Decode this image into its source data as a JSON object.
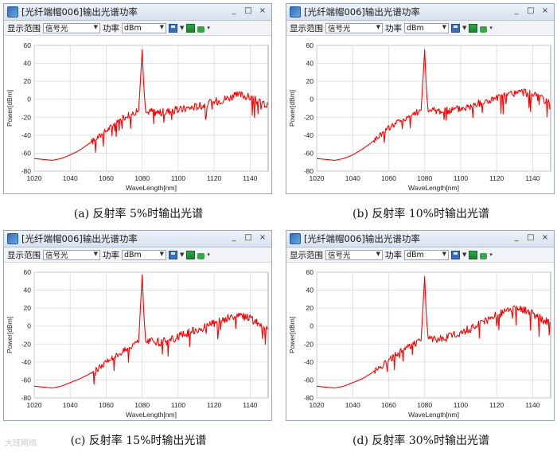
{
  "window_title": "[光纤端帽006]输出光谱功率",
  "toolbar": {
    "range_label": "显示范围",
    "range_value": "信号光",
    "power_label": "功率",
    "power_unit": "dBm"
  },
  "window_buttons": {
    "minimize": "_",
    "maximize": "□",
    "close": "×"
  },
  "watermark": "大班网络",
  "colors": {
    "line": "#ff0000",
    "grid": "#d9d9d9",
    "window_border": "#9aa7b8"
  },
  "chart_data": [
    {
      "type": "line",
      "caption": "(a)  反射率 5%时输出光谱",
      "xlabel": "WaveLength[nm]",
      "ylabel": "Power[dBm]",
      "xlim": [
        1020,
        1150
      ],
      "ylim": [
        -80,
        60
      ],
      "xticks": [
        1020,
        1040,
        1060,
        1080,
        1100,
        1120,
        1140
      ],
      "yticks": [
        -80,
        -60,
        -40,
        -20,
        0,
        20,
        40,
        60
      ],
      "grid": true,
      "series": [
        {
          "x": [
            1020,
            1025,
            1030,
            1035,
            1040,
            1045,
            1050,
            1055,
            1060,
            1065,
            1070,
            1075,
            1078,
            1079,
            1080,
            1081,
            1082,
            1085,
            1090,
            1095,
            1100,
            1105,
            1110,
            1115,
            1120,
            1125,
            1130,
            1135,
            1140,
            1145,
            1150
          ],
          "y": [
            -66,
            -67,
            -68,
            -66,
            -62,
            -57,
            -50,
            -43,
            -35,
            -27,
            -20,
            -15,
            -13,
            20,
            55,
            10,
            -15,
            -13,
            -15,
            -13,
            -12,
            -10,
            -8,
            -6,
            -3,
            0,
            3,
            5,
            2,
            -3,
            -7
          ]
        }
      ]
    },
    {
      "type": "line",
      "caption": "(b)  反射率 10%时输出光谱",
      "xlabel": "WaveLength[nm]",
      "ylabel": "Power[dBm]",
      "xlim": [
        1020,
        1150
      ],
      "ylim": [
        -80,
        60
      ],
      "xticks": [
        1020,
        1040,
        1060,
        1080,
        1100,
        1120,
        1140
      ],
      "yticks": [
        -80,
        -60,
        -40,
        -20,
        0,
        20,
        40,
        60
      ],
      "grid": true,
      "series": [
        {
          "x": [
            1020,
            1025,
            1030,
            1035,
            1040,
            1045,
            1050,
            1055,
            1060,
            1065,
            1070,
            1075,
            1078,
            1079,
            1080,
            1081,
            1082,
            1085,
            1090,
            1095,
            1100,
            1105,
            1110,
            1115,
            1120,
            1125,
            1130,
            1135,
            1140,
            1145,
            1150
          ],
          "y": [
            -66,
            -67,
            -68,
            -66,
            -62,
            -56,
            -49,
            -40,
            -32,
            -25,
            -20,
            -15,
            -12,
            20,
            55,
            8,
            -14,
            -12,
            -13,
            -12,
            -10,
            -8,
            -5,
            -2,
            1,
            4,
            7,
            8,
            5,
            0,
            -6
          ]
        }
      ]
    },
    {
      "type": "line",
      "caption": "(c)  反射率 15%时输出光谱",
      "xlabel": "WaveLength[nm]",
      "ylabel": "Power[dBm]",
      "xlim": [
        1020,
        1150
      ],
      "ylim": [
        -80,
        60
      ],
      "xticks": [
        1020,
        1040,
        1060,
        1080,
        1100,
        1120,
        1140
      ],
      "yticks": [
        -80,
        -60,
        -40,
        -20,
        0,
        20,
        40,
        60
      ],
      "grid": true,
      "series": [
        {
          "x": [
            1020,
            1025,
            1030,
            1035,
            1040,
            1045,
            1050,
            1055,
            1060,
            1065,
            1070,
            1075,
            1078,
            1079,
            1080,
            1081,
            1082,
            1085,
            1090,
            1095,
            1100,
            1105,
            1110,
            1115,
            1120,
            1125,
            1130,
            1135,
            1140,
            1145,
            1150
          ],
          "y": [
            -67,
            -68,
            -69,
            -67,
            -63,
            -59,
            -54,
            -48,
            -40,
            -33,
            -27,
            -22,
            -18,
            20,
            57,
            10,
            -18,
            -17,
            -18,
            -16,
            -12,
            -8,
            -4,
            -1,
            3,
            7,
            10,
            11,
            8,
            2,
            -5
          ]
        }
      ]
    },
    {
      "type": "line",
      "caption": "(d)  反射率 30%时输出光谱",
      "xlabel": "WaveLength[nm]",
      "ylabel": "Power[dBm]",
      "xlim": [
        1020,
        1150
      ],
      "ylim": [
        -80,
        60
      ],
      "xticks": [
        1020,
        1040,
        1060,
        1080,
        1100,
        1120,
        1140
      ],
      "yticks": [
        -80,
        -60,
        -40,
        -20,
        0,
        20,
        40,
        60
      ],
      "grid": true,
      "series": [
        {
          "x": [
            1020,
            1025,
            1030,
            1035,
            1040,
            1045,
            1050,
            1055,
            1060,
            1065,
            1070,
            1075,
            1078,
            1079,
            1080,
            1081,
            1082,
            1085,
            1090,
            1095,
            1100,
            1105,
            1110,
            1115,
            1120,
            1125,
            1130,
            1135,
            1140,
            1145,
            1150
          ],
          "y": [
            -67,
            -68,
            -69,
            -67,
            -63,
            -59,
            -53,
            -46,
            -38,
            -30,
            -24,
            -19,
            -16,
            20,
            55,
            8,
            -14,
            -15,
            -14,
            -11,
            -7,
            -3,
            2,
            6,
            12,
            16,
            19,
            18,
            14,
            8,
            2
          ]
        }
      ]
    }
  ]
}
